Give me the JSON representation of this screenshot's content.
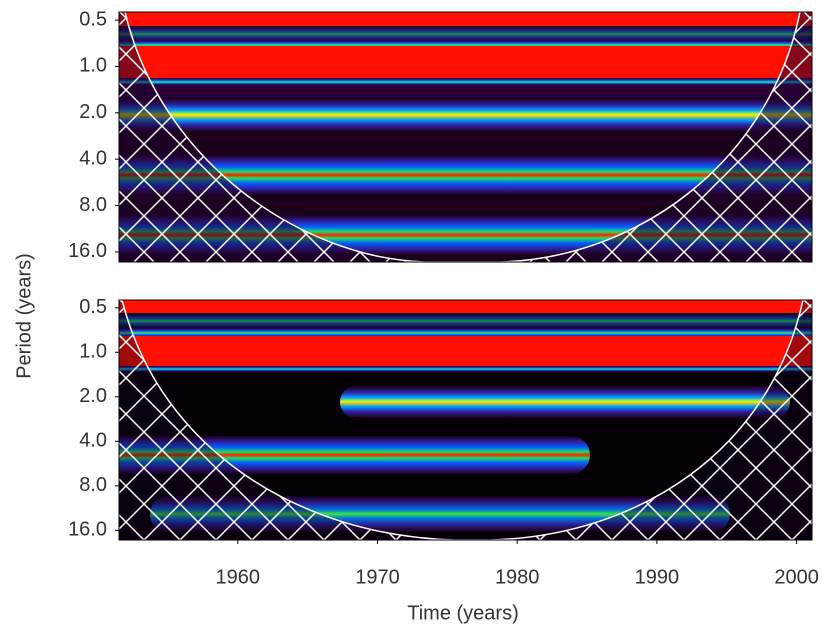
{
  "chart_data": [
    {
      "type": "heatmap",
      "ylabel": "Period (years)",
      "xlim": [
        1951.5,
        2001.1
      ],
      "ylim": [
        0.443,
        18.6
      ],
      "ylog_base": 2,
      "yreversed": true,
      "yticks": [
        0.5,
        {
          "value": 1,
          "label": "1.0"
        },
        {
          "value": 2,
          "label": "2.0"
        },
        {
          "value": 4,
          "label": "4.0"
        },
        {
          "value": 8,
          "label": "8.0"
        },
        {
          "value": 16,
          "label": "16.0"
        }
      ]
    },
    {
      "type": "heatmap",
      "xlabel": "Time (years)",
      "xlim": [
        1951.5,
        2001.1
      ],
      "xticks": [
        1960,
        1970,
        1980,
        1990,
        2000
      ],
      "ylim": [
        0.443,
        18.6
      ],
      "ylog_base": 2,
      "yreversed": true,
      "yticks": [
        0.5,
        {
          "value": 1,
          "label": "1.0"
        },
        {
          "value": 2,
          "label": "2.0"
        },
        {
          "value": 4,
          "label": "4.0"
        },
        {
          "value": 8,
          "label": "8.0"
        },
        {
          "value": 16,
          "label": "16.0"
        }
      ]
    }
  ]
}
